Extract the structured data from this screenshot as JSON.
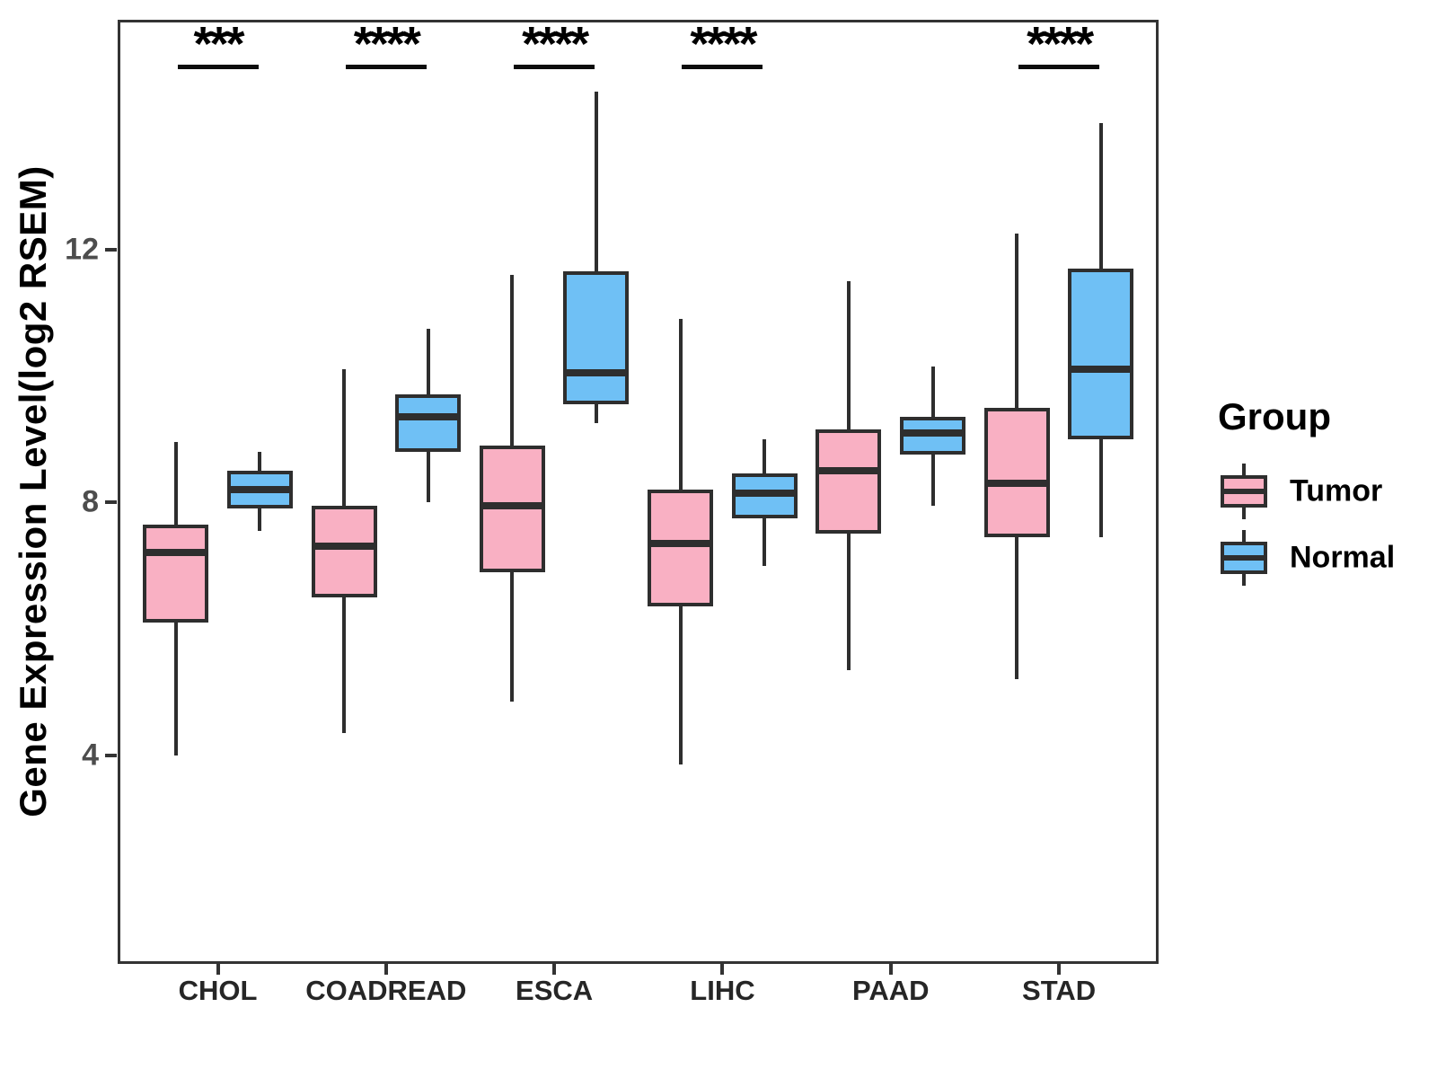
{
  "figure": {
    "y_axis_title": "Gene Expression Level(log2 RSEM)",
    "legend": {
      "title": "Group",
      "items": [
        {
          "label": "Tumor",
          "color": "#F9B0C3"
        },
        {
          "label": "Normal",
          "color": "#6FC0F5"
        }
      ]
    }
  },
  "chart_data": {
    "type": "grouped_boxplot",
    "title": "",
    "xlabel": "",
    "ylabel": "Gene Expression Level(log2 RSEM)",
    "categories": [
      "CHOL",
      "COADREAD",
      "ESCA",
      "LIHC",
      "PAAD",
      "STAD"
    ],
    "y_ticks": [
      12,
      8,
      4
    ],
    "ylim": [
      0.7,
      15.63
    ],
    "grid": "off",
    "legend_position": "right",
    "stroke_color": "#2e2e2e",
    "series": [
      {
        "name": "Tumor",
        "color": "#F9B0C3",
        "boxes": [
          {
            "category": "CHOL",
            "min": 4.0,
            "q1": 6.1,
            "median": 7.2,
            "q3": 7.65,
            "max": 8.95
          },
          {
            "category": "COADREAD",
            "min": 4.35,
            "q1": 6.5,
            "median": 7.3,
            "q3": 7.95,
            "max": 10.1
          },
          {
            "category": "ESCA",
            "min": 4.85,
            "q1": 6.9,
            "median": 7.95,
            "q3": 8.9,
            "max": 11.6
          },
          {
            "category": "LIHC",
            "min": 3.85,
            "q1": 6.35,
            "median": 7.35,
            "q3": 8.2,
            "max": 10.9
          },
          {
            "category": "PAAD",
            "min": 5.35,
            "q1": 7.5,
            "median": 8.5,
            "q3": 9.15,
            "max": 11.5
          },
          {
            "category": "STAD",
            "min": 5.2,
            "q1": 7.45,
            "median": 8.3,
            "q3": 9.5,
            "max": 12.25
          }
        ]
      },
      {
        "name": "Normal",
        "color": "#6FC0F5",
        "boxes": [
          {
            "category": "CHOL",
            "min": 7.55,
            "q1": 7.9,
            "median": 8.2,
            "q3": 8.5,
            "max": 8.8
          },
          {
            "category": "COADREAD",
            "min": 8.0,
            "q1": 8.8,
            "median": 9.35,
            "q3": 9.7,
            "max": 10.75
          },
          {
            "category": "ESCA",
            "min": 9.25,
            "q1": 9.55,
            "median": 10.05,
            "q3": 11.65,
            "max": 14.5
          },
          {
            "category": "LIHC",
            "min": 7.0,
            "q1": 7.75,
            "median": 8.15,
            "q3": 8.45,
            "max": 9.0
          },
          {
            "category": "PAAD",
            "min": 7.95,
            "q1": 8.75,
            "median": 9.1,
            "q3": 9.35,
            "max": 10.15
          },
          {
            "category": "STAD",
            "min": 7.45,
            "q1": 9.0,
            "median": 10.1,
            "q3": 11.7,
            "max": 14.0
          }
        ]
      }
    ],
    "significance": [
      "***",
      "****",
      "****",
      "****",
      null,
      "****"
    ]
  }
}
